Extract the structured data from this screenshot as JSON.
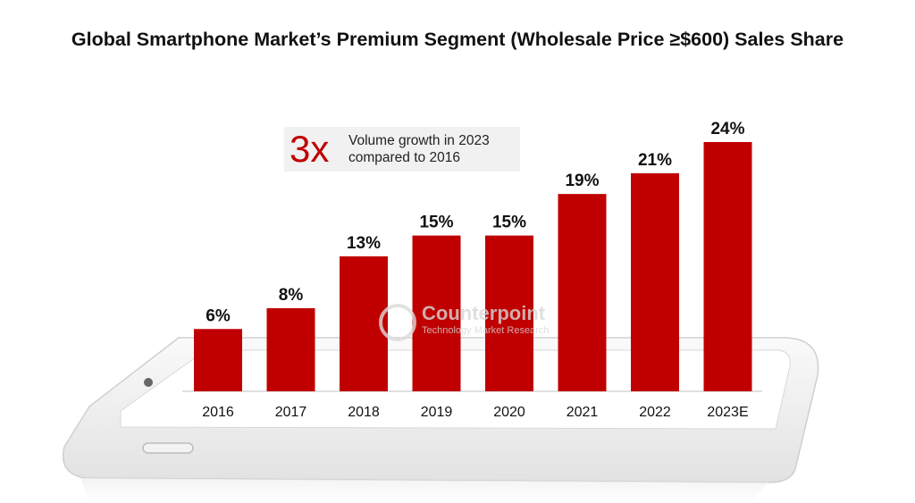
{
  "page": {
    "title": "Global Smartphone Market’s Premium Segment (Wholesale Price ≥$600) Sales Share"
  },
  "callout": {
    "multiplier": "3x",
    "line1": "Volume growth in 2023",
    "line2": "compared to 2016"
  },
  "watermark": {
    "brand": "Counterpoint",
    "tagline": "Technology Market Research"
  },
  "colors": {
    "bar": "#c00000",
    "phone_body": "#f4f4f4",
    "phone_screen": "#ffffff"
  },
  "chart_data": {
    "type": "bar",
    "title": "Global Smartphone Market’s Premium Segment (Wholesale Price ≥$600) Sales Share",
    "categories": [
      "2016",
      "2017",
      "2018",
      "2019",
      "2020",
      "2021",
      "2022",
      "2023E"
    ],
    "values": [
      6,
      8,
      13,
      15,
      15,
      19,
      21,
      24
    ],
    "value_labels": [
      "6%",
      "8%",
      "13%",
      "15%",
      "15%",
      "19%",
      "21%",
      "24%"
    ],
    "xlabel": "",
    "ylabel": "",
    "ylim": [
      0,
      24
    ],
    "grid": false,
    "legend": "none"
  }
}
